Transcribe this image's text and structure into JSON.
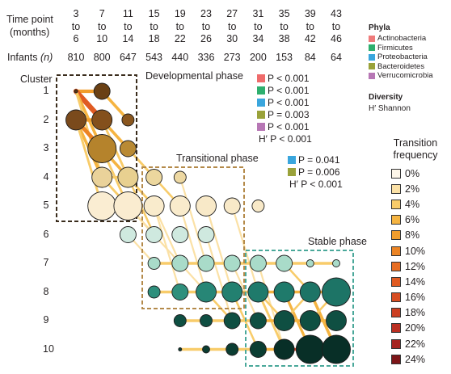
{
  "header": {
    "time_point_label": "Time point",
    "months_label": "(months)",
    "infants_label": "Infants",
    "infants_n": "(n)"
  },
  "time_points": [
    {
      "start": "3",
      "to": "to",
      "end": "6"
    },
    {
      "start": "7",
      "to": "to",
      "end": "10"
    },
    {
      "start": "11",
      "to": "to",
      "end": "14"
    },
    {
      "start": "15",
      "to": "to",
      "end": "18"
    },
    {
      "start": "19",
      "to": "to",
      "end": "22"
    },
    {
      "start": "23",
      "to": "to",
      "end": "26"
    },
    {
      "start": "27",
      "to": "to",
      "end": "30"
    },
    {
      "start": "31",
      "to": "to",
      "end": "34"
    },
    {
      "start": "35",
      "to": "to",
      "end": "38"
    },
    {
      "start": "39",
      "to": "to",
      "end": "42"
    },
    {
      "start": "43",
      "to": "to",
      "end": "46"
    }
  ],
  "infant_counts": [
    "810",
    "800",
    "647",
    "543",
    "440",
    "336",
    "273",
    "200",
    "153",
    "84",
    "64"
  ],
  "cluster_title": "Cluster",
  "clusters": [
    "1",
    "2",
    "3",
    "4",
    "5",
    "6",
    "7",
    "8",
    "9",
    "10"
  ],
  "phases": {
    "developmental": {
      "title": "Developmental phase",
      "stats": [
        {
          "color": "#ef6b6b",
          "text": "P < 0.001"
        },
        {
          "color": "#2eaf6e",
          "text": "P < 0.001"
        },
        {
          "color": "#3aa6dd",
          "text": "P < 0.001"
        },
        {
          "color": "#9aa23a",
          "text": "P = 0.003"
        },
        {
          "color": "#b777b5",
          "text": "P < 0.001"
        }
      ],
      "diversity": "H′ P < 0.001"
    },
    "transitional": {
      "title": "Transitional phase",
      "stats": [
        {
          "color": "#3aa6dd",
          "text": "P = 0.041"
        },
        {
          "color": "#9aa23a",
          "text": "P = 0.006"
        }
      ],
      "diversity": "H′ P < 0.001"
    },
    "stable": {
      "title": "Stable phase"
    }
  },
  "phyla_legend": {
    "title": "Phyla",
    "items": [
      {
        "label": "Actinobacteria",
        "color": "#ef7b7b"
      },
      {
        "label": "Firmicutes",
        "color": "#2eaf6e"
      },
      {
        "label": "Proteobacteria",
        "color": "#3aa6dd"
      },
      {
        "label": "Bacteroidetes",
        "color": "#9aa23a"
      },
      {
        "label": "Verrucomicrobia",
        "color": "#b777b5"
      }
    ]
  },
  "diversity_legend": {
    "title": "Diversity",
    "subtitle": "H′ Shannon"
  },
  "transition_legend": {
    "title_line1": "Transition",
    "title_line2": "frequency",
    "items": [
      {
        "label": "0%",
        "color": "#fdf6e9"
      },
      {
        "label": "2%",
        "color": "#fbe1a6"
      },
      {
        "label": "4%",
        "color": "#f8cc6a"
      },
      {
        "label": "6%",
        "color": "#f5b441"
      },
      {
        "label": "8%",
        "color": "#f19d2c"
      },
      {
        "label": "10%",
        "color": "#ec8424"
      },
      {
        "label": "12%",
        "color": "#e76d22"
      },
      {
        "label": "14%",
        "color": "#e05b22"
      },
      {
        "label": "16%",
        "color": "#d74d22"
      },
      {
        "label": "18%",
        "color": "#cb3f22"
      },
      {
        "label": "20%",
        "color": "#bb2f22"
      },
      {
        "label": "22%",
        "color": "#a52420"
      },
      {
        "label": "24%",
        "color": "#7d1518"
      }
    ]
  },
  "diagram": {
    "nodes": [
      {
        "cl": 1,
        "t": 0,
        "size": 5,
        "color": "#5a3512"
      },
      {
        "cl": 1,
        "t": 1,
        "size": 2,
        "color": "#6a4014"
      },
      {
        "cl": 2,
        "t": 0,
        "size": 3,
        "color": "#7a4a1c"
      },
      {
        "cl": 2,
        "t": 1,
        "size": 3,
        "color": "#84501c"
      },
      {
        "cl": 2,
        "t": 2,
        "size": 1,
        "color": "#8a561e"
      },
      {
        "cl": 3,
        "t": 1,
        "size": 4,
        "color": "#b5832c"
      },
      {
        "cl": 3,
        "t": 2,
        "size": 2,
        "color": "#b98a34"
      },
      {
        "cl": 4,
        "t": 1,
        "size": 3,
        "color": "#ead29a"
      },
      {
        "cl": 4,
        "t": 2,
        "size": 3,
        "color": "#e8d090"
      },
      {
        "cl": 4,
        "t": 3,
        "size": 2,
        "color": "#ecd79e"
      },
      {
        "cl": 4,
        "t": 4,
        "size": 1,
        "color": "#edd8a2"
      },
      {
        "cl": 5,
        "t": 1,
        "size": 4,
        "color": "#faedd2"
      },
      {
        "cl": 5,
        "t": 2,
        "size": 4,
        "color": "#faecd0"
      },
      {
        "cl": 5,
        "t": 3,
        "size": 3,
        "color": "#f9ebcc"
      },
      {
        "cl": 5,
        "t": 4,
        "size": 3,
        "color": "#f9ebcc"
      },
      {
        "cl": 5,
        "t": 5,
        "size": 3,
        "color": "#f8e9c8"
      },
      {
        "cl": 5,
        "t": 6,
        "size": 2,
        "color": "#f8e9c8"
      },
      {
        "cl": 5,
        "t": 7,
        "size": 1,
        "color": "#f8e9c8"
      },
      {
        "cl": 6,
        "t": 2,
        "size": 2,
        "color": "#cfe9df"
      },
      {
        "cl": 6,
        "t": 3,
        "size": 2,
        "color": "#cfe9df"
      },
      {
        "cl": 6,
        "t": 4,
        "size": 2,
        "color": "#cfe9df"
      },
      {
        "cl": 6,
        "t": 5,
        "size": 2,
        "color": "#cfe9df"
      },
      {
        "cl": 7,
        "t": 3,
        "size": 1,
        "color": "#a9dbc9"
      },
      {
        "cl": 7,
        "t": 4,
        "size": 2,
        "color": "#a9dbc9"
      },
      {
        "cl": 7,
        "t": 5,
        "size": 2,
        "color": "#a9dbc9"
      },
      {
        "cl": 7,
        "t": 6,
        "size": 2,
        "color": "#a9dbc9"
      },
      {
        "cl": 7,
        "t": 7,
        "size": 2,
        "color": "#a9dbc9"
      },
      {
        "cl": 7,
        "t": 8,
        "size": 2,
        "color": "#a9dbc9"
      },
      {
        "cl": 7,
        "t": 9,
        "size": 0,
        "color": "#a9dbc9"
      },
      {
        "cl": 7,
        "t": 10,
        "size": 0,
        "color": "#a9dbc9"
      },
      {
        "cl": 8,
        "t": 3,
        "size": 1,
        "color": "#2e8f7c"
      },
      {
        "cl": 8,
        "t": 4,
        "size": 2,
        "color": "#2e8f7c"
      },
      {
        "cl": 8,
        "t": 5,
        "size": 3,
        "color": "#278676"
      },
      {
        "cl": 8,
        "t": 6,
        "size": 3,
        "color": "#238070"
      },
      {
        "cl": 8,
        "t": 7,
        "size": 3,
        "color": "#1f7a6b"
      },
      {
        "cl": 8,
        "t": 8,
        "size": 3,
        "color": "#1f7a6b"
      },
      {
        "cl": 8,
        "t": 9,
        "size": 3,
        "color": "#1d7466"
      },
      {
        "cl": 8,
        "t": 10,
        "size": 4,
        "color": "#1d7466"
      },
      {
        "cl": 9,
        "t": 4,
        "size": 1,
        "color": "#0f4f42"
      },
      {
        "cl": 9,
        "t": 5,
        "size": 1,
        "color": "#0f4f42"
      },
      {
        "cl": 9,
        "t": 6,
        "size": 2,
        "color": "#0f4f42"
      },
      {
        "cl": 9,
        "t": 7,
        "size": 2,
        "color": "#0f4f42"
      },
      {
        "cl": 9,
        "t": 8,
        "size": 3,
        "color": "#0f4f42"
      },
      {
        "cl": 9,
        "t": 9,
        "size": 3,
        "color": "#0f4f42"
      },
      {
        "cl": 9,
        "t": 10,
        "size": 3,
        "color": "#0f4f42"
      },
      {
        "cl": 10,
        "t": 4,
        "size": -1,
        "color": "#0b3d32"
      },
      {
        "cl": 10,
        "t": 5,
        "size": 0,
        "color": "#0b3d32"
      },
      {
        "cl": 10,
        "t": 6,
        "size": 1,
        "color": "#0b3d32"
      },
      {
        "cl": 10,
        "t": 7,
        "size": 2,
        "color": "#0b3d32"
      },
      {
        "cl": 10,
        "t": 8,
        "size": 3,
        "color": "#082f27"
      },
      {
        "cl": 10,
        "t": 9,
        "size": 4,
        "color": "#082f27"
      },
      {
        "cl": 10,
        "t": 10,
        "size": 4,
        "color": "#082f27"
      }
    ],
    "edges": [
      {
        "a": [
          1,
          0
        ],
        "b": [
          1,
          1
        ],
        "f": 8
      },
      {
        "a": [
          1,
          0
        ],
        "b": [
          2,
          1
        ],
        "f": 14
      },
      {
        "a": [
          1,
          0
        ],
        "b": [
          3,
          1
        ],
        "f": 6
      },
      {
        "a": [
          1,
          0
        ],
        "b": [
          4,
          1
        ],
        "f": 4
      },
      {
        "a": [
          2,
          0
        ],
        "b": [
          2,
          1
        ],
        "f": 8
      },
      {
        "a": [
          2,
          0
        ],
        "b": [
          3,
          1
        ],
        "f": 10
      },
      {
        "a": [
          2,
          0
        ],
        "b": [
          4,
          1
        ],
        "f": 6
      },
      {
        "a": [
          2,
          0
        ],
        "b": [
          5,
          1
        ],
        "f": 4
      },
      {
        "a": [
          1,
          1
        ],
        "b": [
          2,
          2
        ],
        "f": 6
      },
      {
        "a": [
          2,
          1
        ],
        "b": [
          3,
          2
        ],
        "f": 6
      },
      {
        "a": [
          2,
          1
        ],
        "b": [
          4,
          2
        ],
        "f": 4
      },
      {
        "a": [
          3,
          1
        ],
        "b": [
          4,
          2
        ],
        "f": 6
      },
      {
        "a": [
          3,
          1
        ],
        "b": [
          5,
          2
        ],
        "f": 4
      },
      {
        "a": [
          4,
          1
        ],
        "b": [
          5,
          2
        ],
        "f": 4
      },
      {
        "a": [
          4,
          1
        ],
        "b": [
          4,
          2
        ],
        "f": 4
      },
      {
        "a": [
          5,
          1
        ],
        "b": [
          5,
          2
        ],
        "f": 4
      },
      {
        "a": [
          3,
          2
        ],
        "b": [
          4,
          3
        ],
        "f": 4
      },
      {
        "a": [
          4,
          2
        ],
        "b": [
          5,
          3
        ],
        "f": 4
      },
      {
        "a": [
          4,
          2
        ],
        "b": [
          6,
          3
        ],
        "f": 3
      },
      {
        "a": [
          5,
          2
        ],
        "b": [
          6,
          3
        ],
        "f": 3
      },
      {
        "a": [
          5,
          2
        ],
        "b": [
          7,
          4
        ],
        "f": 2
      },
      {
        "a": [
          6,
          2
        ],
        "b": [
          7,
          3
        ],
        "f": 2
      },
      {
        "a": [
          4,
          3
        ],
        "b": [
          5,
          4
        ],
        "f": 3
      },
      {
        "a": [
          5,
          3
        ],
        "b": [
          7,
          4
        ],
        "f": 2
      },
      {
        "a": [
          5,
          3
        ],
        "b": [
          8,
          4
        ],
        "f": 2
      },
      {
        "a": [
          4,
          4
        ],
        "b": [
          7,
          5
        ],
        "f": 2
      },
      {
        "a": [
          5,
          4
        ],
        "b": [
          8,
          5
        ],
        "f": 2
      },
      {
        "a": [
          5,
          5
        ],
        "b": [
          8,
          6
        ],
        "f": 2
      },
      {
        "a": [
          5,
          6
        ],
        "b": [
          8,
          7
        ],
        "f": 2
      },
      {
        "a": [
          6,
          5
        ],
        "b": [
          9,
          6
        ],
        "f": 2
      },
      {
        "a": [
          7,
          4
        ],
        "b": [
          8,
          5
        ],
        "f": 2
      },
      {
        "a": [
          7,
          6
        ],
        "b": [
          9,
          7
        ],
        "f": 2
      },
      {
        "a": [
          7,
          7
        ],
        "b": [
          10,
          8
        ],
        "f": 2
      },
      {
        "a": [
          8,
          5
        ],
        "b": [
          9,
          6
        ],
        "f": 3
      },
      {
        "a": [
          8,
          6
        ],
        "b": [
          10,
          7
        ],
        "f": 3
      },
      {
        "a": [
          8,
          7
        ],
        "b": [
          9,
          8
        ],
        "f": 3
      },
      {
        "a": [
          8,
          7
        ],
        "b": [
          10,
          8
        ],
        "f": 4
      },
      {
        "a": [
          8,
          8
        ],
        "b": [
          10,
          9
        ],
        "f": 5
      },
      {
        "a": [
          8,
          9
        ],
        "b": [
          10,
          10
        ],
        "f": 6
      },
      {
        "a": [
          9,
          8
        ],
        "b": [
          8,
          9
        ],
        "f": 3
      },
      {
        "a": [
          9,
          9
        ],
        "b": [
          8,
          10
        ],
        "f": 3
      },
      {
        "a": [
          7,
          8
        ],
        "b": [
          8,
          9
        ],
        "f": 3
      }
    ]
  }
}
